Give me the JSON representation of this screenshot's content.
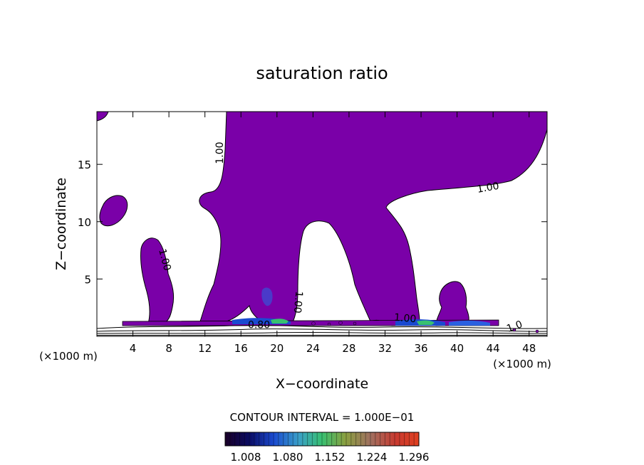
{
  "chart_data": {
    "type": "contour",
    "title": "saturation ratio",
    "xlabel": "X−coordinate",
    "ylabel": "Z−coordinate",
    "x_unit": "(×1000 m)",
    "z_unit": "(×1000 m)",
    "xlim": [
      0,
      50
    ],
    "ylim": [
      0,
      19.6
    ],
    "x_ticks": [
      4,
      8,
      12,
      16,
      20,
      24,
      28,
      32,
      36,
      40,
      44,
      48
    ],
    "y_ticks": [
      5,
      10,
      15
    ],
    "contour_labels": [
      {
        "text": "1.00",
        "x": 14.0,
        "z": 16.0,
        "angle": -90
      },
      {
        "text": "1.00",
        "x": 43.5,
        "z": 12.7,
        "angle": -10
      },
      {
        "text": "1.00",
        "x": 7.2,
        "z": 6.6,
        "angle": 75
      },
      {
        "text": "1.00",
        "x": 22.0,
        "z": 3.0,
        "angle": 95
      },
      {
        "text": "1.00",
        "x": 34.2,
        "z": 1.3,
        "angle": 5
      },
      {
        "text": "0.80",
        "x": 18.0,
        "z": 0.7,
        "angle": 0
      },
      {
        "text": "1.0",
        "x": 46.5,
        "z": 0.6,
        "angle": -20
      }
    ],
    "contour_interval_label": "CONTOUR INTERVAL = 1.000E−01",
    "colorbar": {
      "min": 1.008,
      "max": 1.296,
      "tick_labels": [
        "1.008",
        "1.080",
        "1.152",
        "1.224",
        "1.296"
      ]
    },
    "fill_color": "#7a00a8"
  }
}
